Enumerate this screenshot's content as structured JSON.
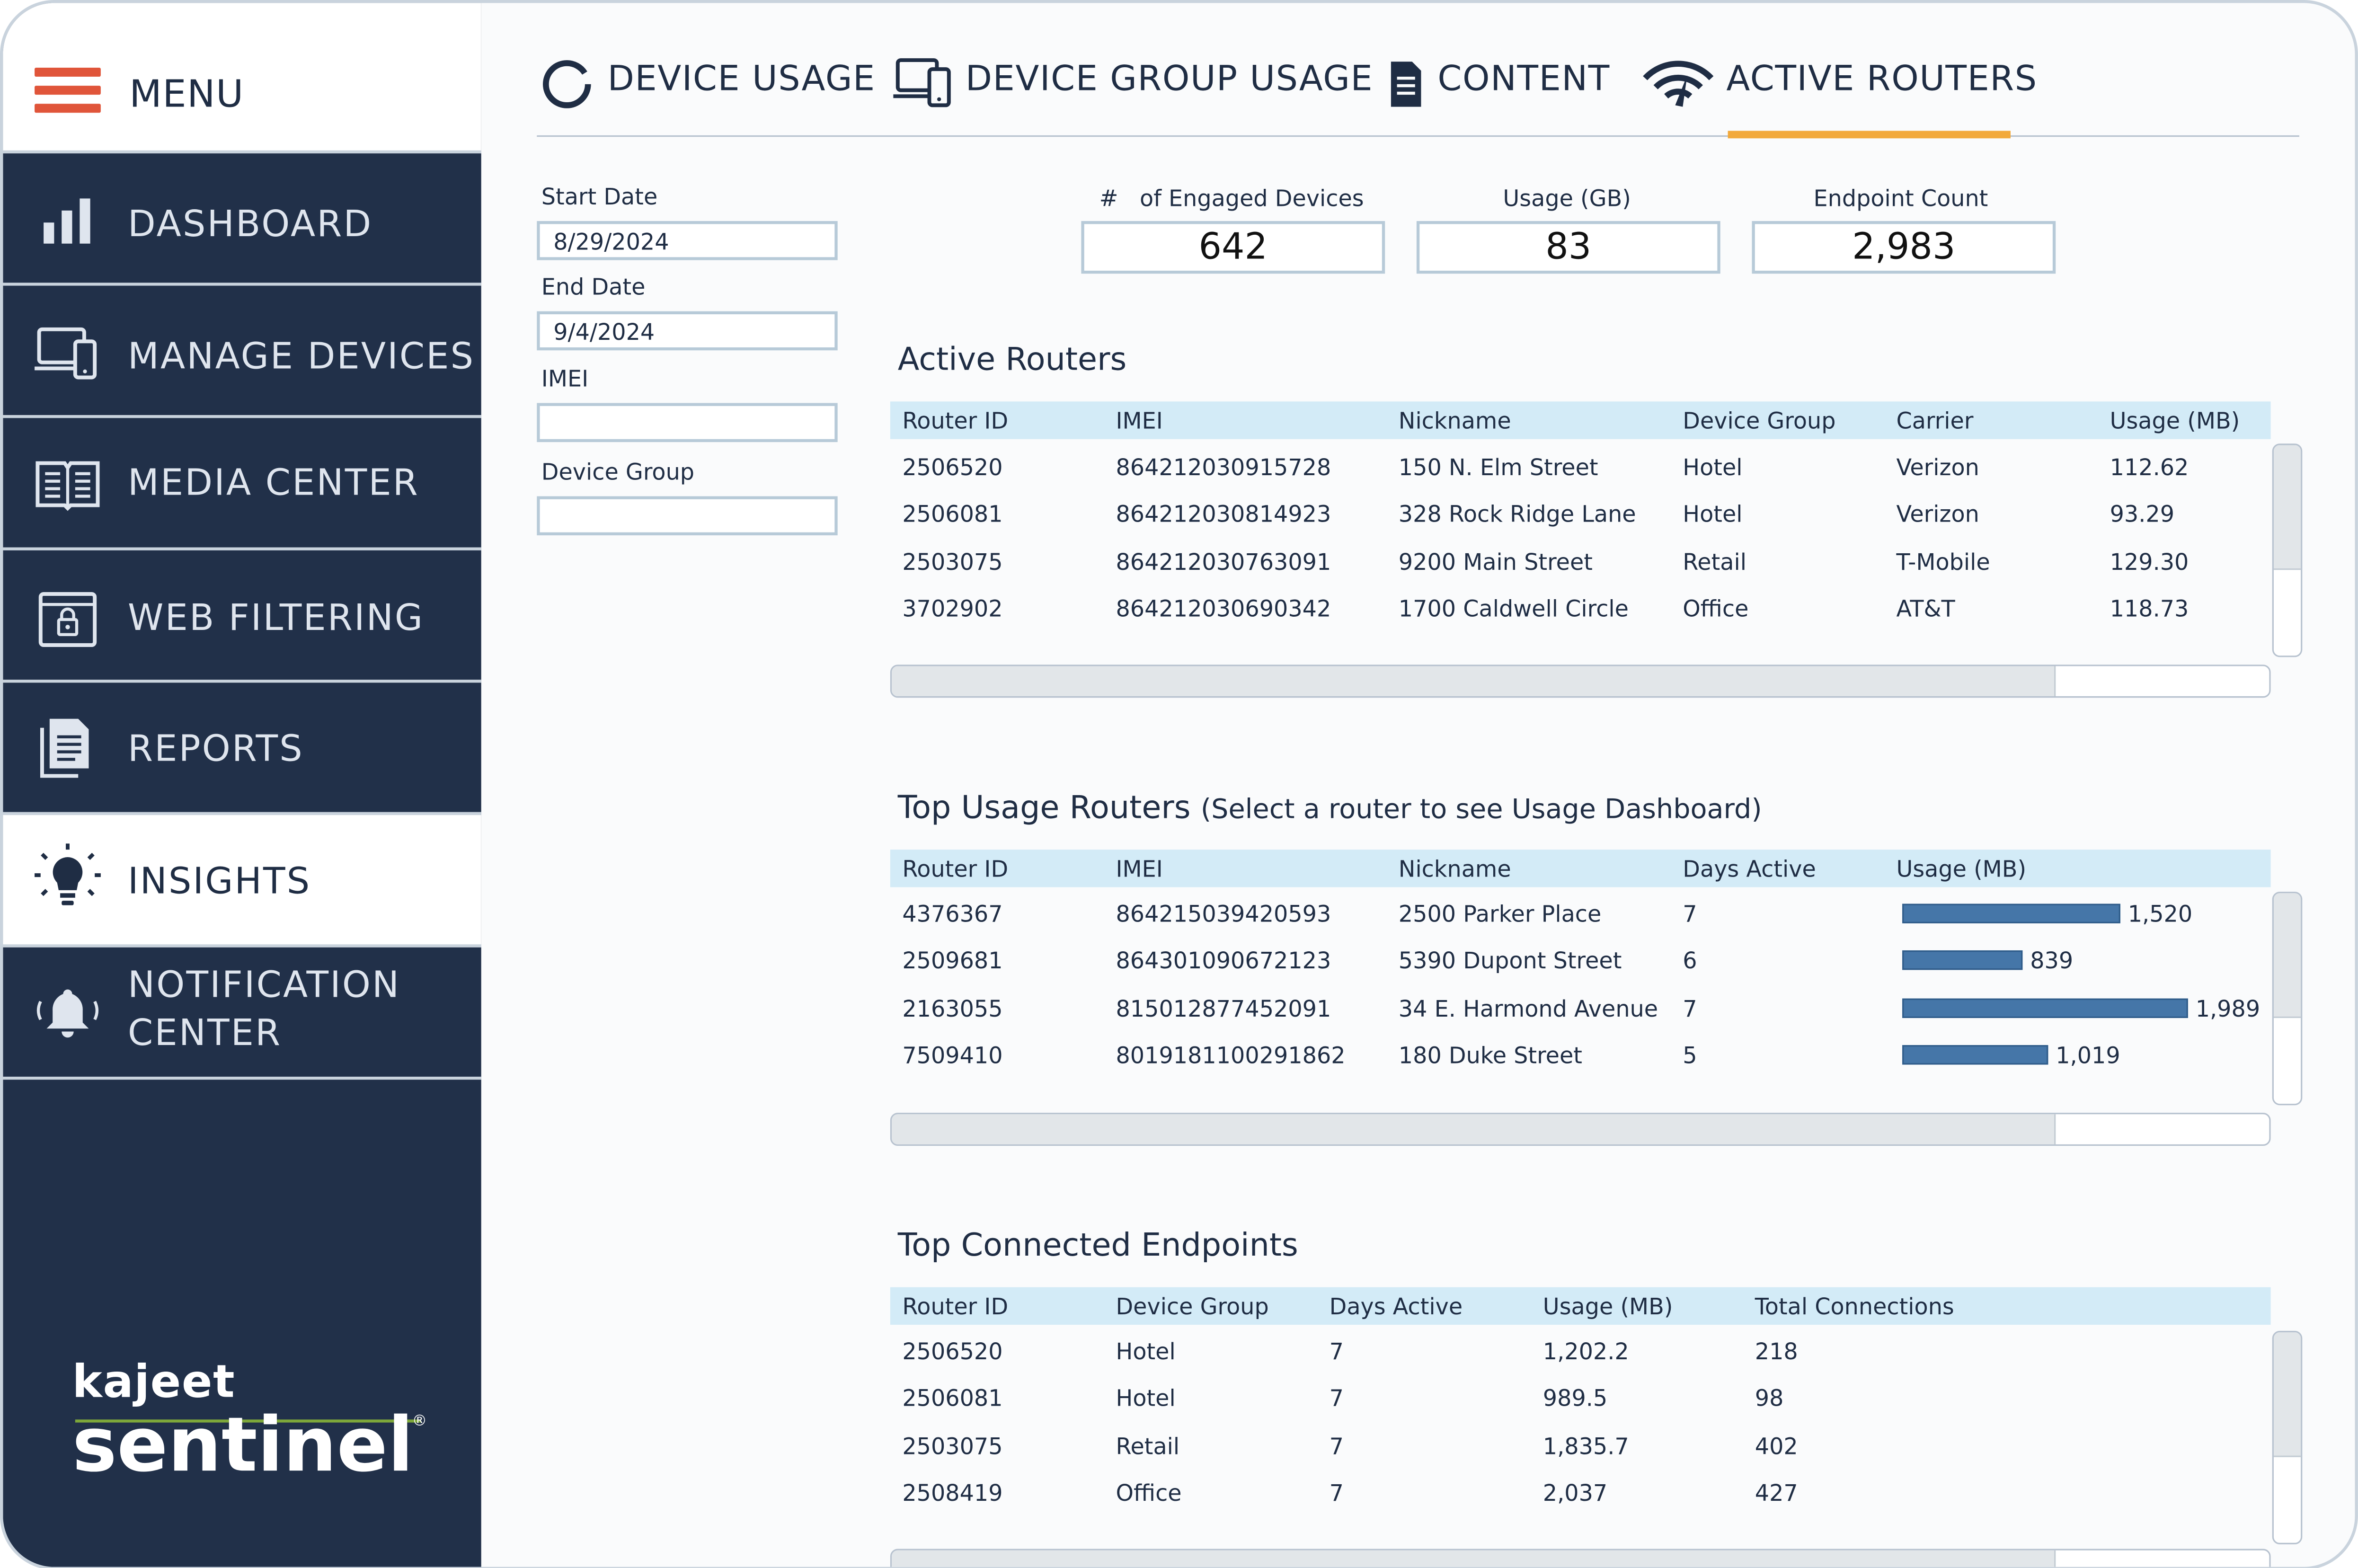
{
  "menu": {
    "label": "MENU"
  },
  "sidebar": {
    "items": [
      {
        "label": "DASHBOARD",
        "icon": "bar-chart-icon"
      },
      {
        "label": "MANAGE DEVICES",
        "icon": "devices-icon"
      },
      {
        "label": "MEDIA CENTER",
        "icon": "book-icon"
      },
      {
        "label": "WEB FILTERING",
        "icon": "lock-browser-icon"
      },
      {
        "label": "REPORTS",
        "icon": "document-stack-icon"
      },
      {
        "label": "INSIGHTS",
        "icon": "lightbulb-icon",
        "active": true
      },
      {
        "label_line1": "NOTIFICATION",
        "label_line2": "CENTER",
        "icon": "bell-icon"
      }
    ],
    "logo": {
      "line1": "kajeet",
      "line2": "sentinel",
      "mark": "®"
    }
  },
  "tabs": [
    {
      "label": "DEVICE USAGE",
      "icon": "ring-icon"
    },
    {
      "label": "DEVICE GROUP USAGE",
      "icon": "devices-icon"
    },
    {
      "label": "CONTENT",
      "icon": "document-icon"
    },
    {
      "label": "ACTIVE ROUTERS",
      "icon": "wifi-signal-icon",
      "active": true
    }
  ],
  "filters": {
    "start_date_label": "Start Date",
    "start_date_value": "8/29/2024",
    "end_date_label": "End Date",
    "end_date_value": "9/4/2024",
    "imei_label": "IMEI",
    "imei_value": "",
    "device_group_label": "Device Group",
    "device_group_value": ""
  },
  "stats": [
    {
      "label": "#   of Engaged Devices",
      "value": "642"
    },
    {
      "label": "Usage (GB)",
      "value": "83"
    },
    {
      "label": "Endpoint Count",
      "value": "2,983"
    }
  ],
  "active_routers": {
    "title": "Active Routers",
    "headers": [
      "Router ID",
      "IMEI",
      "Nickname",
      "Device Group",
      "Carrier",
      "Usage (MB)"
    ],
    "rows": [
      [
        "2506520",
        "864212030915728",
        "150 N. Elm Street",
        "Hotel",
        "Verizon",
        "112.62"
      ],
      [
        "2506081",
        "864212030814923",
        "328 Rock Ridge Lane",
        "Hotel",
        "Verizon",
        "93.29"
      ],
      [
        "2503075",
        "864212030763091",
        "9200 Main Street",
        "Retail",
        "T-Mobile",
        "129.30"
      ],
      [
        "3702902",
        "864212030690342",
        "1700 Caldwell Circle",
        "Office",
        "AT&T",
        "118.73"
      ]
    ]
  },
  "top_usage": {
    "title": "Top Usage Routers",
    "subtitle": "(Select a router to see Usage Dashboard)",
    "headers": [
      "Router ID",
      "IMEI",
      "Nickname",
      "Days Active",
      "Usage (MB)"
    ],
    "rows": [
      [
        "4376367",
        "864215039420593",
        "2500 Parker Place",
        "7",
        "1,520"
      ],
      [
        "2509681",
        "864301090672123",
        "5390 Dupont Street",
        "6",
        "839"
      ],
      [
        "2163055",
        "815012877452091",
        "34 E. Harmond Avenue",
        "7",
        "1,989"
      ],
      [
        "7509410",
        "8019181100291862",
        "180 Duke Street",
        "5",
        "1,019"
      ]
    ],
    "usage_values": [
      1520,
      839,
      1989,
      1019
    ],
    "bar_color": "#4576a8"
  },
  "top_endpoints": {
    "title": "Top Connected Endpoints",
    "headers": [
      "Router ID",
      "Device Group",
      "Days Active",
      "Usage (MB)",
      "Total Connections"
    ],
    "rows": [
      [
        "2506520",
        "Hotel",
        "7",
        "1,202.2",
        "218"
      ],
      [
        "2506081",
        "Hotel",
        "7",
        "989.5",
        "98"
      ],
      [
        "2503075",
        "Retail",
        "7",
        "1,835.7",
        "402"
      ],
      [
        "2508419",
        "Office",
        "7",
        "2,037",
        "427"
      ]
    ]
  },
  "colors": {
    "sidebar": "#213049",
    "accent_orange": "#f2a93b",
    "menu_red": "#e0553a",
    "table_header": "#d3ebf7"
  }
}
